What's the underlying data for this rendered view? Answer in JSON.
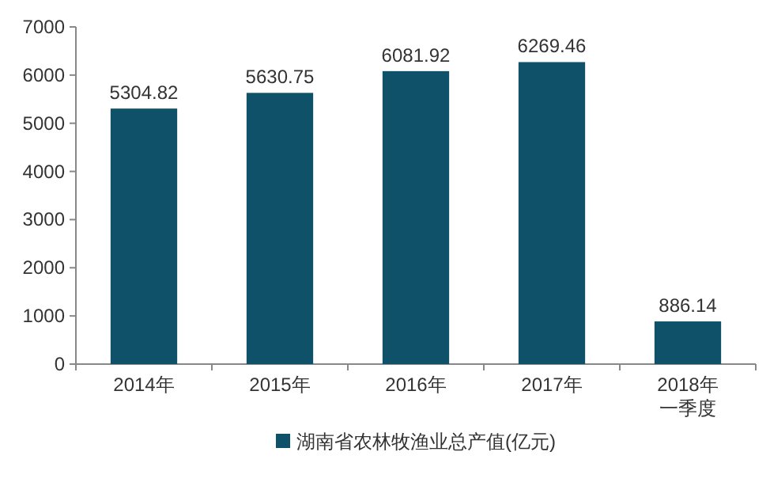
{
  "chart_data": {
    "type": "bar",
    "categories": [
      "2014年",
      "2015年",
      "2016年",
      "2017年",
      "2018年一季度"
    ],
    "series": [
      {
        "name": "湖南省农林牧渔业总产值(亿元)",
        "color": "#0e5168",
        "values": [
          5304.82,
          5630.75,
          6081.92,
          6269.46,
          886.14
        ]
      }
    ],
    "ylim": [
      0,
      7000
    ],
    "yticks": [
      0,
      1000,
      2000,
      3000,
      4000,
      5000,
      6000,
      7000
    ],
    "data_labels": true,
    "legend": "bottom"
  }
}
